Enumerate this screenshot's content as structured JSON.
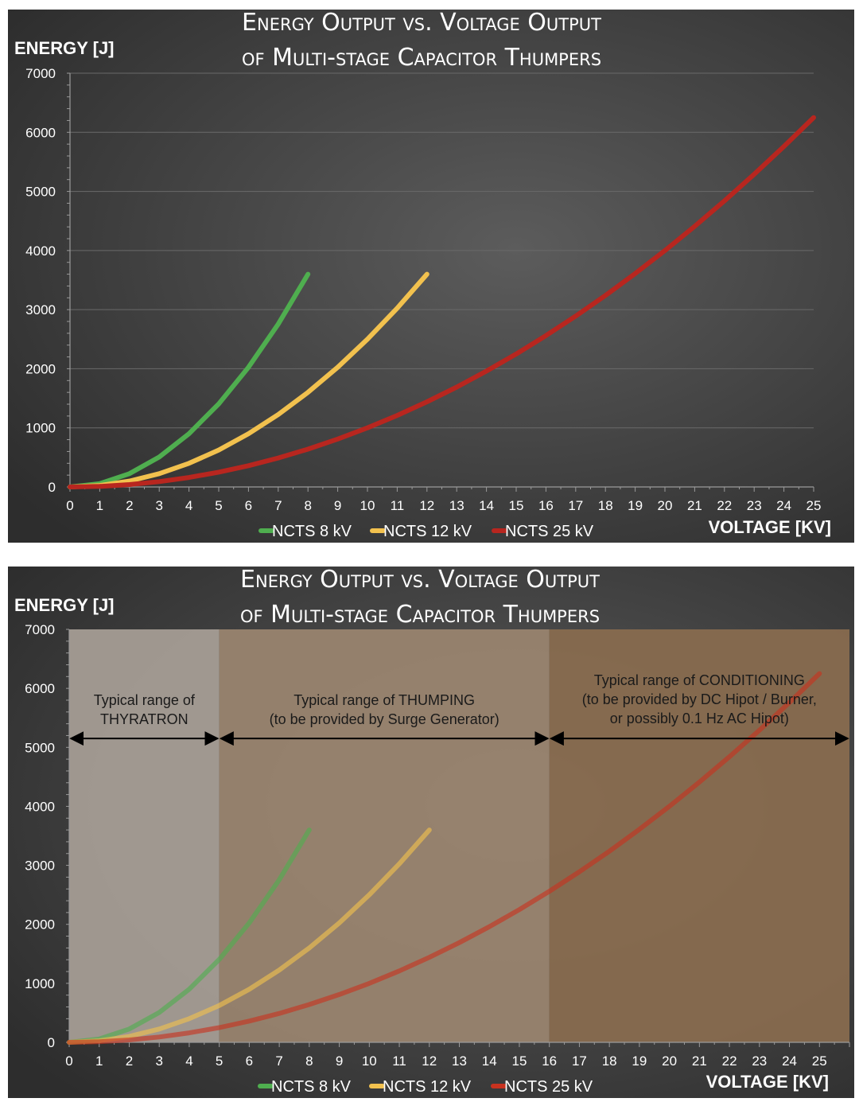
{
  "chart_data": [
    {
      "type": "line",
      "title_line1": "Energy Output vs. Voltage Output",
      "title_line2": "of Multi-stage Capacitor Thumpers",
      "ylabel": "ENERGY [J]",
      "xlabel": "VOLTAGE [KV]",
      "xlim": [
        0,
        25
      ],
      "ylim": [
        0,
        7000
      ],
      "x_ticks": [
        "0",
        "1",
        "2",
        "3",
        "4",
        "5",
        "6",
        "7",
        "8",
        "9",
        "10",
        "11",
        "12",
        "13",
        "14",
        "15",
        "16",
        "17",
        "18",
        "19",
        "20",
        "21",
        "22",
        "23",
        "24",
        "25"
      ],
      "y_ticks": [
        "0",
        "1000",
        "2000",
        "3000",
        "4000",
        "5000",
        "6000",
        "7000"
      ],
      "grid": true,
      "legend_position": "bottom",
      "series": [
        {
          "name": "NCTS 8 kV",
          "color": "#4fae4f",
          "x": [
            0,
            1,
            2,
            3,
            4,
            5,
            6,
            7,
            8
          ],
          "values": [
            0,
            56,
            225,
            506,
            900,
            1406,
            2025,
            2756,
            3600
          ]
        },
        {
          "name": "NCTS 12 kV",
          "color": "#f2c14e",
          "x": [
            0,
            1,
            2,
            3,
            4,
            5,
            6,
            7,
            8,
            9,
            10,
            11,
            12
          ],
          "values": [
            0,
            25,
            100,
            225,
            400,
            625,
            900,
            1225,
            1600,
            2025,
            2500,
            3025,
            3600
          ]
        },
        {
          "name": "NCTS 25 kV",
          "color": "#b8261f",
          "x": [
            0,
            1,
            2,
            3,
            4,
            5,
            6,
            7,
            8,
            9,
            10,
            11,
            12,
            13,
            14,
            15,
            16,
            17,
            18,
            19,
            20,
            21,
            22,
            23,
            24,
            25
          ],
          "values": [
            0,
            10,
            40,
            90,
            160,
            250,
            360,
            490,
            640,
            810,
            1000,
            1210,
            1440,
            1690,
            1960,
            2250,
            2560,
            2890,
            3240,
            3610,
            4000,
            4410,
            4840,
            5290,
            5760,
            6250
          ]
        }
      ]
    },
    {
      "type": "line",
      "title_line1": "Energy Output vs. Voltage Output",
      "title_line2": "of Multi-stage Capacitor Thumpers",
      "ylabel": "ENERGY [J]",
      "xlabel": "VOLTAGE [KV]",
      "xlim": [
        0,
        26
      ],
      "ylim": [
        0,
        7000
      ],
      "x_ticks": [
        "0",
        "1",
        "2",
        "3",
        "4",
        "5",
        "6",
        "7",
        "8",
        "9",
        "10",
        "11",
        "12",
        "13",
        "14",
        "15",
        "16",
        "17",
        "18",
        "19",
        "20",
        "21",
        "22",
        "23",
        "24",
        "25"
      ],
      "y_ticks": [
        "0",
        "1000",
        "2000",
        "3000",
        "4000",
        "5000",
        "6000",
        "7000"
      ],
      "grid": false,
      "legend_position": "bottom",
      "regions": [
        {
          "x_start": 0,
          "x_end": 5,
          "color": "#a89f97",
          "label_lines": [
            "Typical range of",
            "THYRATRON"
          ]
        },
        {
          "x_start": 5,
          "x_end": 16,
          "color": "#9b8570",
          "label_lines": [
            "Typical range of THUMPING",
            "(to be provided  by Surge Generator)"
          ]
        },
        {
          "x_start": 16,
          "x_end": 26,
          "color": "#8a6c4f",
          "label_lines": [
            "Typical range of CONDITIONING",
            "(to be provided  by DC Hipot / Burner,",
            "or possibly 0.1 Hz AC Hipot)"
          ]
        }
      ],
      "region_arrow_y": 5150,
      "series": [
        {
          "name": "NCTS 8 kV",
          "color": "#4fae4f",
          "x": [
            0,
            1,
            2,
            3,
            4,
            5,
            6,
            7,
            8
          ],
          "values": [
            0,
            56,
            225,
            506,
            900,
            1406,
            2025,
            2756,
            3600
          ]
        },
        {
          "name": "NCTS 12 kV",
          "color": "#f2c14e",
          "x": [
            0,
            1,
            2,
            3,
            4,
            5,
            6,
            7,
            8,
            9,
            10,
            11,
            12
          ],
          "values": [
            0,
            25,
            100,
            225,
            400,
            625,
            900,
            1225,
            1600,
            2025,
            2500,
            3025,
            3600
          ]
        },
        {
          "name": "NCTS 25 kV",
          "color": "#c8321f",
          "x": [
            0,
            1,
            2,
            3,
            4,
            5,
            6,
            7,
            8,
            9,
            10,
            11,
            12,
            13,
            14,
            15,
            16,
            17,
            18,
            19,
            20,
            21,
            22,
            23,
            24,
            25
          ],
          "values": [
            0,
            10,
            40,
            90,
            160,
            250,
            360,
            490,
            640,
            810,
            1000,
            1210,
            1440,
            1690,
            1960,
            2250,
            2560,
            2890,
            3240,
            3610,
            4000,
            4410,
            4840,
            5290,
            5760,
            6250
          ]
        }
      ]
    }
  ]
}
